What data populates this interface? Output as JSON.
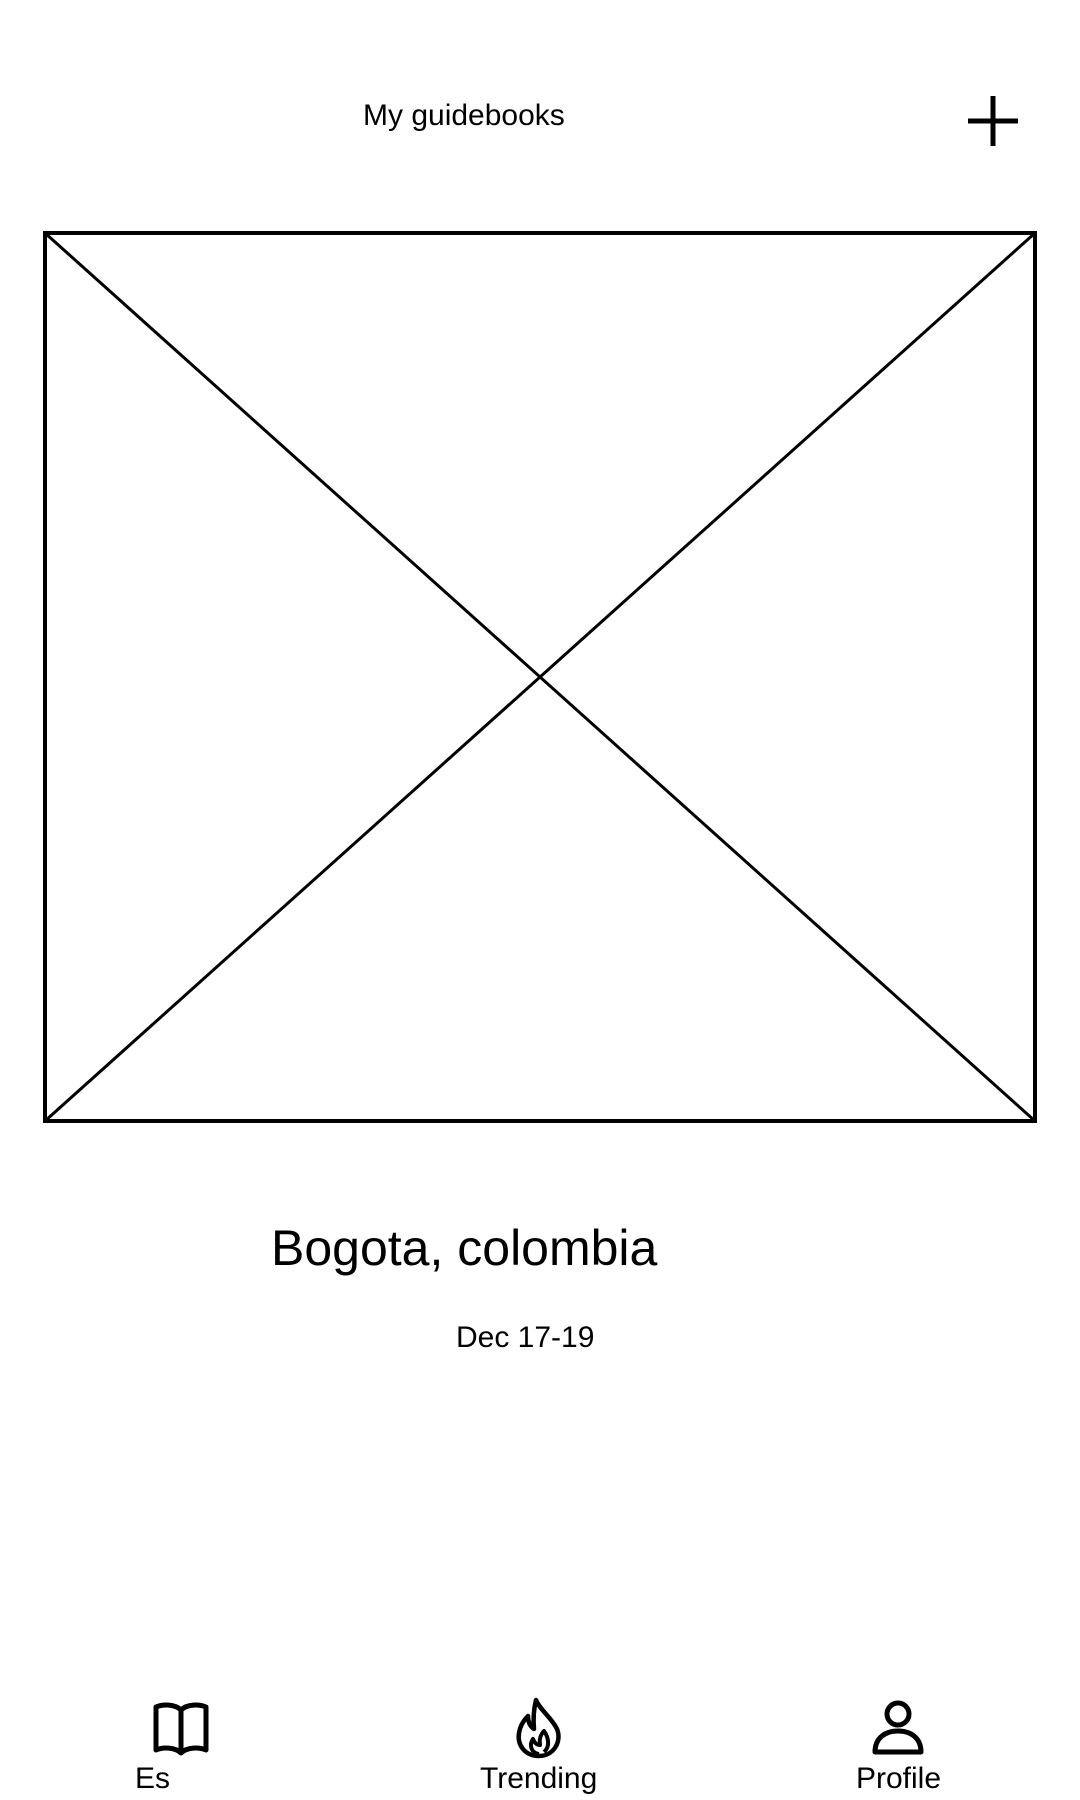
{
  "header": {
    "title": "My guidebooks",
    "add_icon": "plus-icon"
  },
  "guidebook": {
    "image_icon": "image-placeholder-icon",
    "title": "Bogota, colombia",
    "dates": "Dec 17-19"
  },
  "bottom_nav": {
    "items": [
      {
        "label": "Es",
        "icon": "book-icon"
      },
      {
        "label": "Trending",
        "icon": "flame-icon"
      },
      {
        "label": "Profile",
        "icon": "user-icon"
      }
    ]
  },
  "colors": {
    "background": "#ffffff",
    "foreground": "#000000"
  }
}
